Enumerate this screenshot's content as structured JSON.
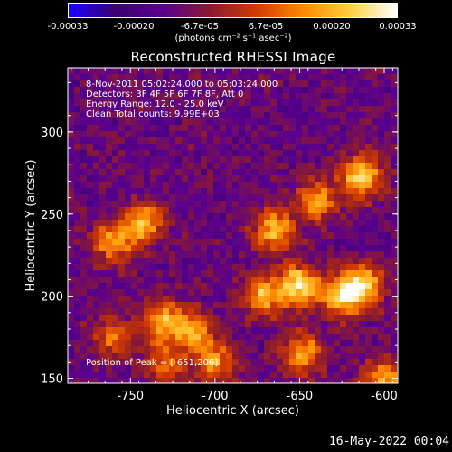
{
  "colorbar": {
    "ticks": [
      "-0.00033",
      "-0.00020",
      "-6.7e-05",
      "6.7e-05",
      "0.00020",
      "0.00033"
    ],
    "unit_label": "(photons cm⁻² s⁻¹ asec⁻²)"
  },
  "title": "Reconstructed RHESSI Image",
  "annotations": {
    "time_range": "8-Nov-2011 05:02:24.000 to 05:03:24.000",
    "detectors": "Detectors: 3F 4F 5F 6F 7F 8F, Att 0",
    "energy_range": "Energy Range: 12.0 - 25.0 keV",
    "clean_counts": "Clean     Total counts: 9.99E+03",
    "peak_position": "Position of Peak = [-651,206]"
  },
  "footer": {
    "date": "16-May-2022 00:04"
  },
  "colors": {
    "background": "#000000",
    "axes": "#ffffff",
    "colormap": [
      "#1a00ff",
      "#3a0070",
      "#5a0090",
      "#8a1a30",
      "#d03a00",
      "#ff8a00",
      "#ffd040",
      "#ffffff"
    ]
  },
  "chart_data": {
    "type": "heatmap",
    "title": "Reconstructed RHESSI Image",
    "xlabel": "Heliocentric X (arcsec)",
    "ylabel": "Heliocentric Y (arcsec)",
    "xlim": [
      -787,
      -592
    ],
    "ylim": [
      147,
      339
    ],
    "x_ticks": [
      -750,
      -700,
      -650,
      -600
    ],
    "y_ticks": [
      150,
      200,
      250,
      300
    ],
    "x_tick_labels": [
      "-750",
      "-700",
      "-650",
      "-600"
    ],
    "y_tick_labels": [
      "150",
      "200",
      "250",
      "300"
    ],
    "colorbar_range": [
      -0.00033,
      0.00033
    ],
    "peak_position": [
      -651,
      206
    ],
    "bright_regions": [
      {
        "x": -742,
        "y": 244,
        "intensity": 0.8
      },
      {
        "x": -760,
        "y": 233,
        "intensity": 0.7
      },
      {
        "x": -730,
        "y": 185,
        "intensity": 0.75
      },
      {
        "x": -712,
        "y": 178,
        "intensity": 0.6
      },
      {
        "x": -760,
        "y": 175,
        "intensity": 0.55
      },
      {
        "x": -665,
        "y": 240,
        "intensity": 0.8
      },
      {
        "x": -651,
        "y": 206,
        "intensity": 1.0
      },
      {
        "x": -672,
        "y": 200,
        "intensity": 0.75
      },
      {
        "x": -625,
        "y": 200,
        "intensity": 0.85
      },
      {
        "x": -612,
        "y": 207,
        "intensity": 0.85
      },
      {
        "x": -614,
        "y": 273,
        "intensity": 0.95
      },
      {
        "x": -640,
        "y": 258,
        "intensity": 0.7
      },
      {
        "x": -648,
        "y": 165,
        "intensity": 0.75
      },
      {
        "x": -700,
        "y": 160,
        "intensity": 0.65
      },
      {
        "x": -730,
        "y": 160,
        "intensity": 0.55
      },
      {
        "x": -600,
        "y": 150,
        "intensity": 0.7
      }
    ]
  }
}
